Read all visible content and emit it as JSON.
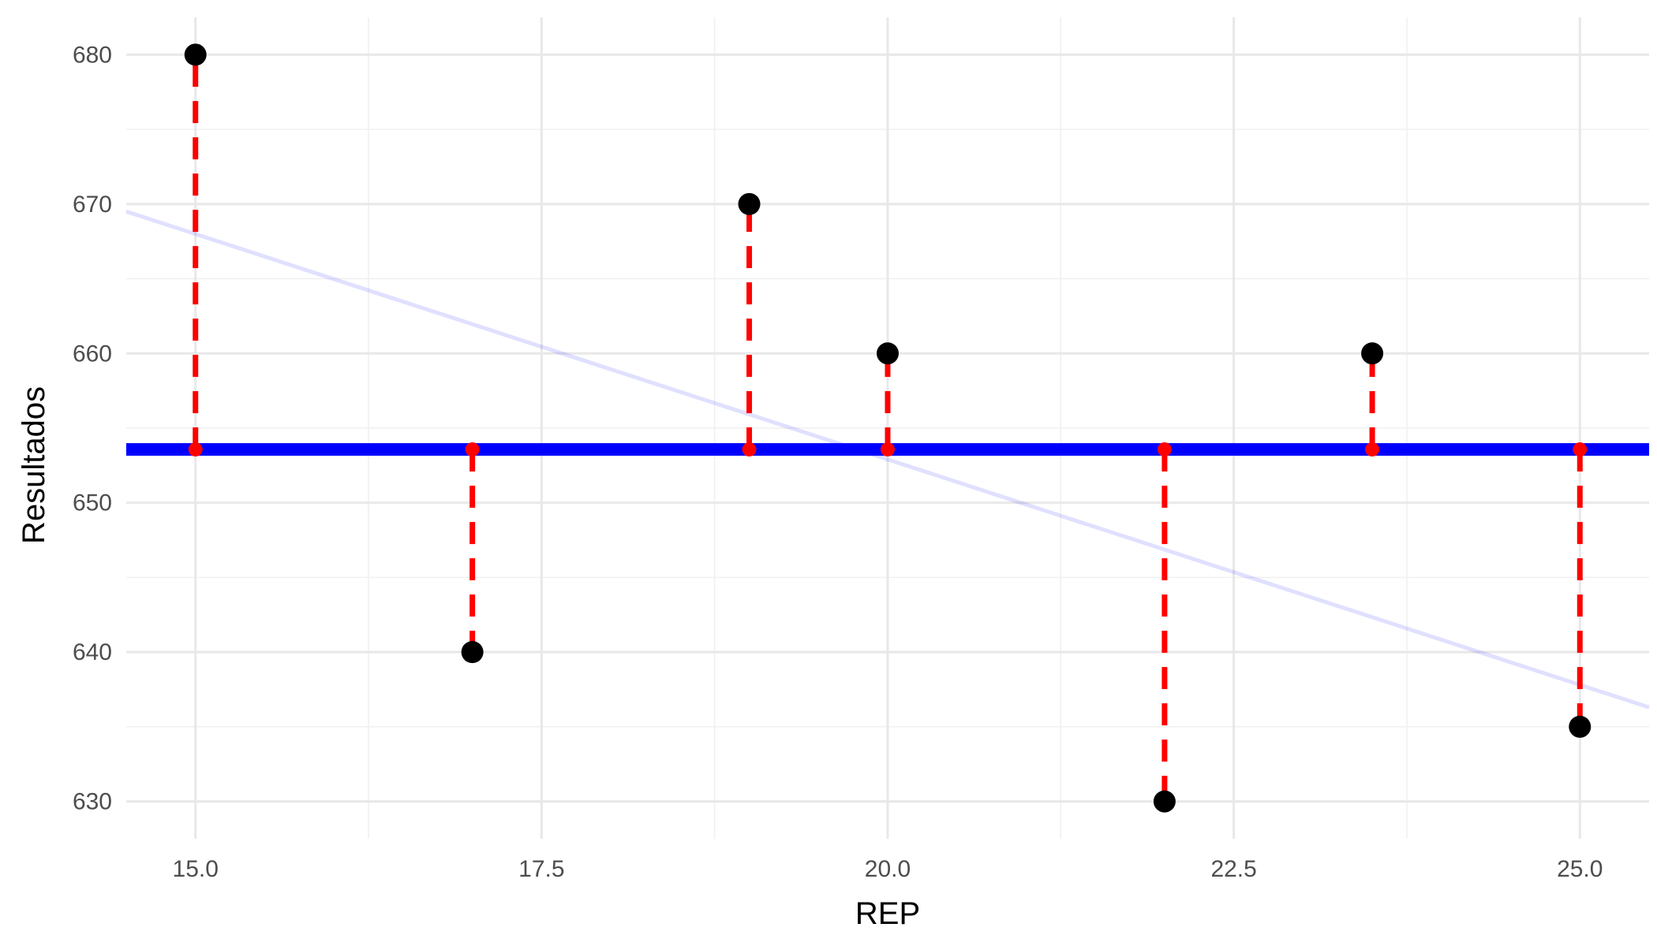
{
  "chart_data": {
    "type": "scatter",
    "title": "",
    "xlabel": "REP",
    "ylabel": "Resultados",
    "xlim": [
      14.5,
      25.5
    ],
    "ylim": [
      627.5,
      682.5
    ],
    "x_ticks": [
      15.0,
      17.5,
      20.0,
      22.5,
      25.0
    ],
    "x_tick_labels": [
      "15.0",
      "17.5",
      "20.0",
      "22.5",
      "25.0"
    ],
    "y_ticks": [
      630,
      640,
      650,
      660,
      670,
      680
    ],
    "y_tick_labels": [
      "630",
      "640",
      "650",
      "660",
      "670",
      "680"
    ],
    "grid": true,
    "legend": "none",
    "points": [
      {
        "x": 15.0,
        "y": 680
      },
      {
        "x": 17.0,
        "y": 640
      },
      {
        "x": 19.0,
        "y": 670
      },
      {
        "x": 20.0,
        "y": 660
      },
      {
        "x": 22.0,
        "y": 630
      },
      {
        "x": 23.5,
        "y": 660
      },
      {
        "x": 25.0,
        "y": 635
      }
    ],
    "mean_line": {
      "y": 653.57,
      "color": "#0000ff"
    },
    "regression_line": {
      "x": [
        14.5,
        25.5
      ],
      "y": [
        669.5,
        636.3
      ],
      "color": "#0000ff",
      "opacity": 0.12
    },
    "residual_segments": {
      "color": "#ff0000",
      "style": "dashed"
    },
    "colors": {
      "points": "#000000",
      "residual": "#ff0000",
      "mean": "#0000ff"
    }
  }
}
